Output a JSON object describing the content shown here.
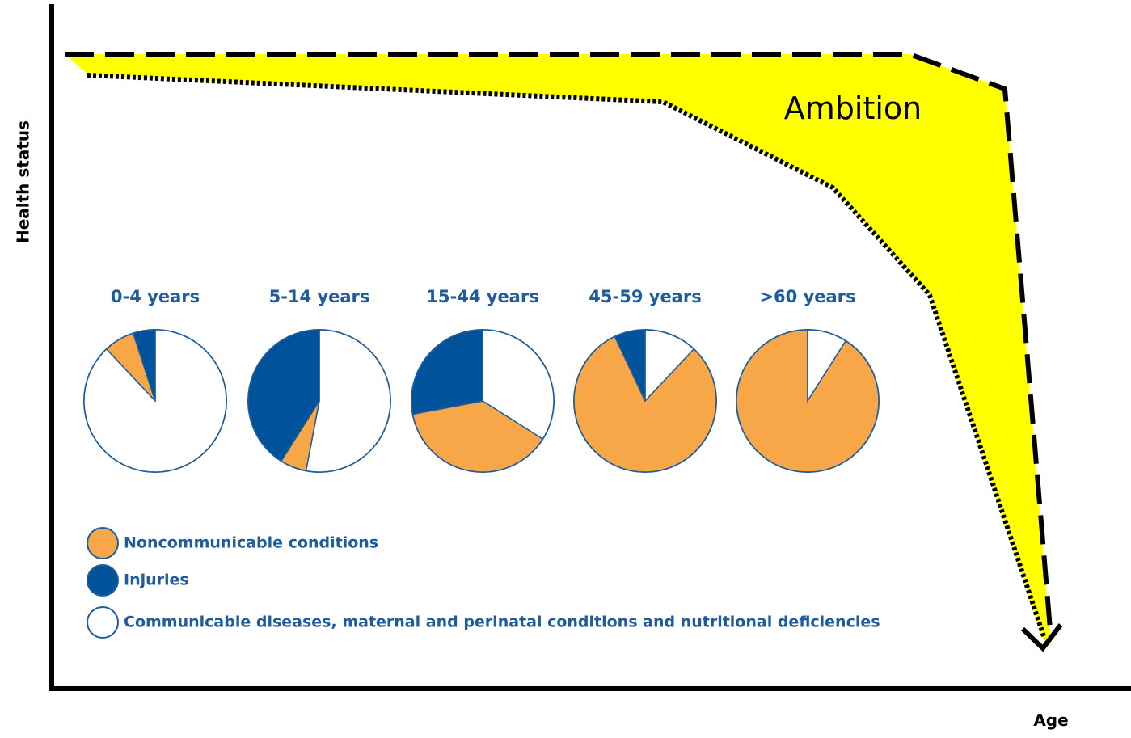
{
  "axis_labels": {
    "y": "Health status",
    "x": "Age"
  },
  "annotation": "Ambition",
  "chart_data": [
    {
      "type": "pie",
      "title": "0-4 years",
      "categories": [
        "Noncommunicable conditions",
        "Injuries",
        "Communicable diseases, maternal and perinatal conditions and nutritional deficiencies"
      ],
      "colors": [
        "#f7a748",
        "#00539b",
        "#ffffff"
      ],
      "values": [
        7,
        5,
        88
      ]
    },
    {
      "type": "pie",
      "title": "5-14 years",
      "categories": [
        "Noncommunicable conditions",
        "Injuries",
        "Communicable diseases, maternal and perinatal conditions and nutritional deficiencies"
      ],
      "colors": [
        "#f7a748",
        "#00539b",
        "#ffffff"
      ],
      "values": [
        6,
        41,
        53
      ]
    },
    {
      "type": "pie",
      "title": "15-44 years",
      "categories": [
        "Noncommunicable conditions",
        "Injuries",
        "Communicable diseases, maternal and perinatal conditions and nutritional deficiencies"
      ],
      "colors": [
        "#f7a748",
        "#00539b",
        "#ffffff"
      ],
      "values": [
        38,
        28,
        34
      ]
    },
    {
      "type": "pie",
      "title": "45-59 years",
      "categories": [
        "Noncommunicable conditions",
        "Injuries",
        "Communicable diseases, maternal and perinatal conditions and nutritional deficiencies"
      ],
      "colors": [
        "#f7a748",
        "#00539b",
        "#ffffff"
      ],
      "values": [
        81,
        7,
        12
      ]
    },
    {
      "type": "pie",
      "title": ">60 years",
      "categories": [
        "Noncommunicable conditions",
        "Injuries",
        "Communicable diseases, maternal and perinatal conditions and nutritional deficiencies"
      ],
      "colors": [
        "#f7a748",
        "#00539b",
        "#ffffff"
      ],
      "values": [
        91,
        0,
        9
      ]
    }
  ]
}
